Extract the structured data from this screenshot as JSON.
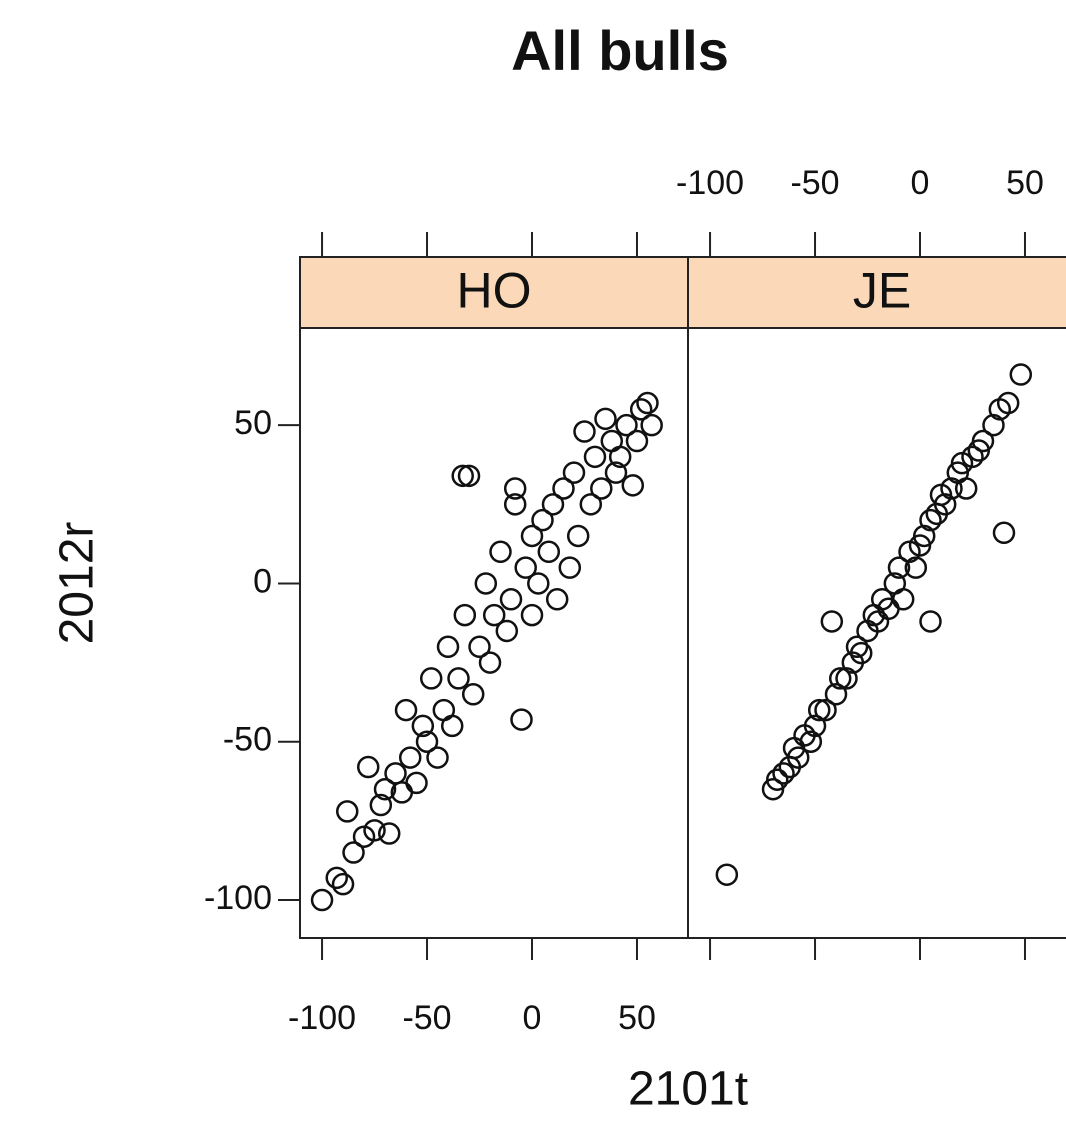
{
  "chart_data": {
    "type": "scatter",
    "title": "All bulls",
    "x_label": "2101t",
    "y_label": "2012r",
    "xlim": [
      -110.5,
      74.3
    ],
    "ylim": [
      -112,
      80.7
    ],
    "xticks": [
      -100,
      -50,
      0,
      50
    ],
    "yticks": [
      -100,
      -50,
      0,
      50
    ],
    "strip_color": "#fbd9b8",
    "series": [
      {
        "name": "HO",
        "color": "#111111",
        "x": [
          -100,
          -93,
          -90,
          -88,
          -85,
          -80,
          -78,
          -75,
          -72,
          -70,
          -68,
          -65,
          -62,
          -60,
          -58,
          -55,
          -52,
          -50,
          -48,
          -45,
          -42,
          -40,
          -38,
          -35,
          -33,
          -30,
          -32,
          -28,
          -25,
          -22,
          -20,
          -18,
          -15,
          -12,
          -10,
          -8,
          -8,
          -5,
          -3,
          0,
          0,
          3,
          5,
          8,
          10,
          12,
          15,
          18,
          20,
          22,
          25,
          28,
          30,
          33,
          35,
          38,
          40,
          42,
          45,
          48,
          50,
          52,
          55,
          57
        ],
        "values": [
          -100,
          -93,
          -95,
          -72,
          -85,
          -80,
          -58,
          -78,
          -70,
          -65,
          -79,
          -60,
          -66,
          -40,
          -55,
          -63,
          -45,
          -50,
          -30,
          -55,
          -40,
          -20,
          -45,
          -30,
          34,
          34,
          -10,
          -35,
          -20,
          0,
          -25,
          -10,
          10,
          -15,
          -5,
          30,
          25,
          -43,
          5,
          -10,
          15,
          0,
          20,
          10,
          25,
          -5,
          30,
          5,
          35,
          15,
          48,
          25,
          40,
          30,
          52,
          45,
          35,
          40,
          50,
          31,
          45,
          55,
          57,
          50
        ]
      },
      {
        "name": "JE",
        "color": "#111111",
        "x": [
          -92,
          -70,
          -68,
          -65,
          -62,
          -60,
          -58,
          -55,
          -52,
          -50,
          -48,
          -45,
          -42,
          -40,
          -38,
          -35,
          -32,
          -30,
          -28,
          -25,
          -22,
          -20,
          -18,
          -15,
          -12,
          -10,
          -8,
          -5,
          -2,
          0,
          2,
          5,
          5,
          8,
          10,
          12,
          15,
          18,
          20,
          22,
          25,
          28,
          30,
          35,
          38,
          40,
          42,
          48
        ],
        "values": [
          -92,
          -65,
          -62,
          -60,
          -58,
          -52,
          -55,
          -48,
          -50,
          -45,
          -40,
          -40,
          -12,
          -35,
          -30,
          -30,
          -25,
          -20,
          -22,
          -15,
          -10,
          -12,
          -5,
          -8,
          0,
          5,
          -5,
          10,
          5,
          12,
          15,
          -12,
          20,
          22,
          28,
          25,
          30,
          35,
          38,
          30,
          40,
          42,
          45,
          50,
          55,
          16,
          57,
          66
        ]
      }
    ]
  }
}
